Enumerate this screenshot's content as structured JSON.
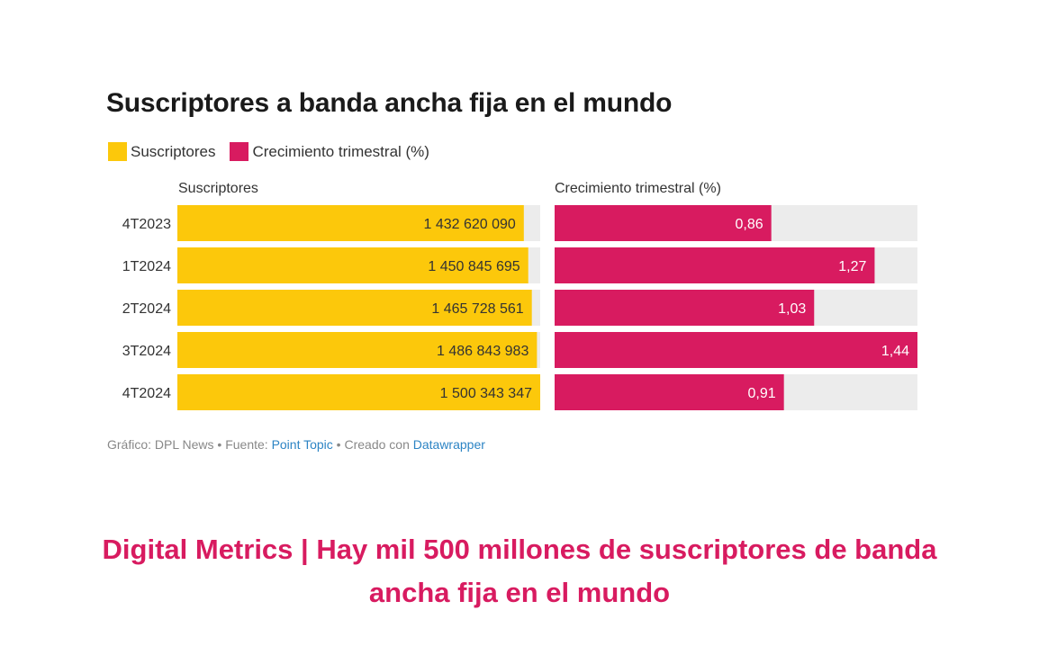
{
  "chart_data": {
    "type": "bar",
    "title": "Suscriptores a banda ancha fija en el mundo",
    "legend": [
      "Suscriptores",
      "Crecimiento trimestral (%)"
    ],
    "categories": [
      "4T2023",
      "1T2024",
      "2T2024",
      "3T2024",
      "4T2024"
    ],
    "series": [
      {
        "name": "Suscriptores",
        "column_header": "Suscriptores",
        "color": "#fcc80b",
        "values": [
          1432620090,
          1450845695,
          1465728561,
          1486843983,
          1500343347
        ],
        "labels": [
          "1 432 620 090",
          "1 450 845 695",
          "1 465 728 561",
          "1 486 843 983",
          "1 500 343 347"
        ]
      },
      {
        "name": "Crecimiento trimestral (%)",
        "column_header": "Crecimiento trimestral (%)",
        "color": "#d81b60",
        "values": [
          0.86,
          1.27,
          1.03,
          1.44,
          0.91
        ],
        "labels": [
          "0,86",
          "1,27",
          "1,03",
          "1,44",
          "0,91"
        ]
      }
    ],
    "background_bar_color": "#ececec",
    "legend_placement": "top-left",
    "grid": false
  },
  "footer": {
    "prefix": "Gráfico: DPL News • Fuente: ",
    "source": "Point Topic",
    "middle": " • Creado con ",
    "tool": "Datawrapper"
  },
  "headline": {
    "line1": "Digital Metrics | Hay mil 500 millones de suscriptores de banda",
    "line2": "ancha fija en el mundo"
  }
}
